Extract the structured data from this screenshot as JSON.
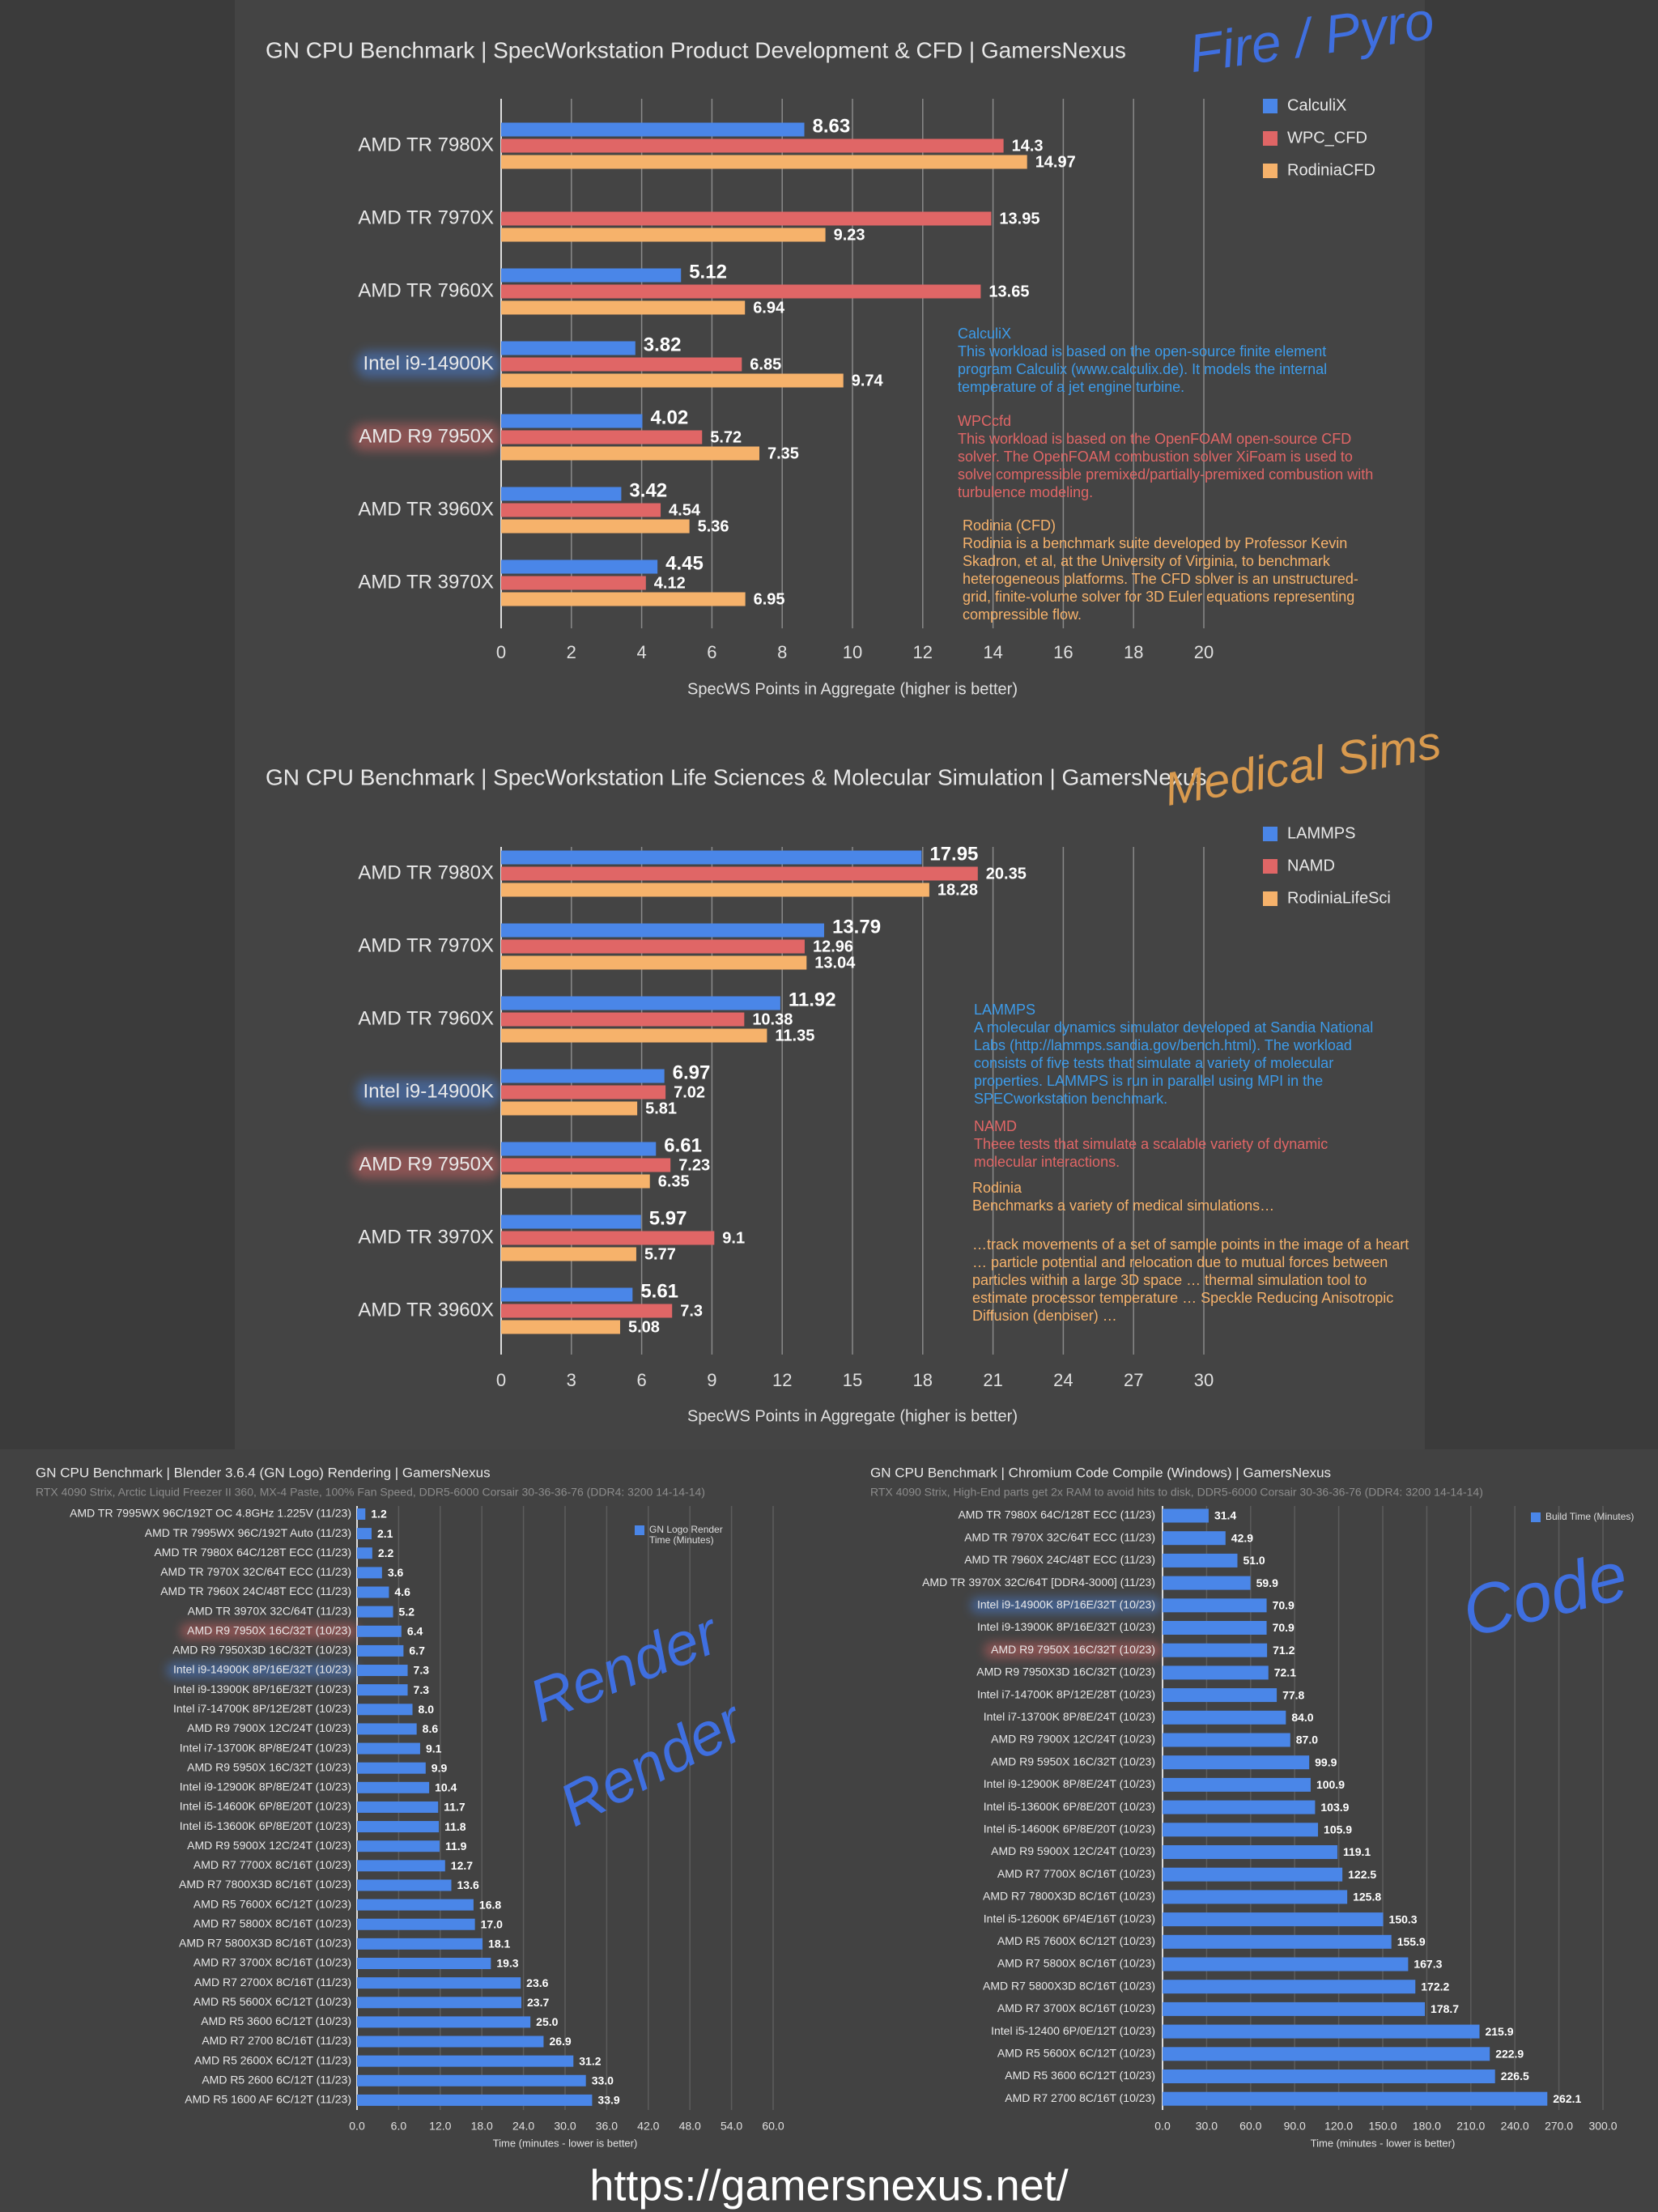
{
  "chart_data": [
    {
      "type": "bar",
      "orientation": "horizontal",
      "title": "GN CPU Benchmark | SpecWorkstation Product Development & CFD | GamersNexus",
      "categories": [
        "AMD TR 7980X",
        "AMD TR 7970X",
        "AMD TR 7960X",
        "Intel i9-14900K",
        "AMD R9 7950X",
        "AMD TR 3960X",
        "AMD TR 3970X"
      ],
      "highlight_colors": [
        null,
        null,
        null,
        "#4a86e8",
        "#e06666",
        null,
        null
      ],
      "series": [
        {
          "name": "CalculiX",
          "color": "#4a86e8",
          "values": [
            8.63,
            null,
            5.12,
            3.82,
            4.02,
            3.42,
            4.45
          ]
        },
        {
          "name": "WPC_CFD",
          "color": "#e06666",
          "values": [
            14.3,
            13.95,
            13.65,
            6.85,
            5.72,
            4.54,
            4.12
          ]
        },
        {
          "name": "RodiniaCFD",
          "color": "#f6b26b",
          "values": [
            14.97,
            9.23,
            6.94,
            9.74,
            7.35,
            5.36,
            6.95
          ]
        }
      ],
      "xlim": [
        0,
        20
      ],
      "xticks": [
        0,
        2,
        4,
        6,
        8,
        10,
        12,
        14,
        16,
        18,
        20
      ],
      "grid": true,
      "x_label": "SpecWS Points in Aggregate (higher is better)",
      "legend_position": "upper right",
      "annotations": [
        {
          "title": "CalculiX",
          "text": "This workload is based on the open-source finite element program Calculix (www.calculix.de). It models the internal temperature of a jet engine turbine.",
          "color": "#3d9be9"
        },
        {
          "title": "WPCcfd",
          "text": "This workload is based on the OpenFOAM open-source CFD solver. The OpenFOAM combustion solver XiFoam is used to solve compressible premixed/partially-premixed combustion with turbulence modeling.",
          "color": "#e06666"
        },
        {
          "title": "Rodinia (CFD)",
          "text": "Rodinia is a benchmark suite developed by Professor Kevin Skadron, et al, at the University of Virginia, to benchmark heterogeneous platforms. The CFD solver is an unstructured-grid, finite-volume solver for 3D Euler equations representing compressible flow.",
          "color": "#f6b26b"
        }
      ]
    },
    {
      "type": "bar",
      "orientation": "horizontal",
      "title": "GN CPU Benchmark | SpecWorkstation Life Sciences & Molecular Simulation | GamersNexus",
      "categories": [
        "AMD TR 7980X",
        "AMD TR 7970X",
        "AMD TR 7960X",
        "Intel i9-14900K",
        "AMD R9 7950X",
        "AMD TR 3970X",
        "AMD TR 3960X"
      ],
      "highlight_colors": [
        null,
        null,
        null,
        "#4a86e8",
        "#e06666",
        null,
        null
      ],
      "series": [
        {
          "name": "LAMMPS",
          "color": "#4a86e8",
          "values": [
            17.95,
            13.79,
            11.92,
            6.97,
            6.61,
            5.97,
            5.61
          ]
        },
        {
          "name": "NAMD",
          "color": "#e06666",
          "values": [
            20.35,
            12.96,
            10.38,
            7.02,
            7.23,
            9.1,
            7.3
          ]
        },
        {
          "name": "RodiniaLifeSci",
          "color": "#f6b26b",
          "values": [
            18.28,
            13.04,
            11.35,
            5.81,
            6.35,
            5.77,
            5.08
          ]
        }
      ],
      "xlim": [
        0,
        30
      ],
      "xticks": [
        0,
        3,
        6,
        9,
        12,
        15,
        18,
        21,
        24,
        27,
        30
      ],
      "grid": true,
      "x_label": "SpecWS Points in Aggregate (higher is better)",
      "legend_position": "upper right",
      "annotations": [
        {
          "title": "LAMMPS",
          "text": "A molecular dynamics simulator developed at Sandia National Labs (http://lammps.sandia.gov/bench.html). The workload consists of five tests that simulate a variety of molecular properties. LAMMPS is run in parallel using MPI in the SPECworkstation benchmark.",
          "color": "#3d9be9"
        },
        {
          "title": "NAMD",
          "text": "Theee tests that simulate a scalable variety of dynamic molecular interactions.",
          "color": "#e06666"
        },
        {
          "title": "Rodinia",
          "text": "Benchmarks a variety of medical simulations…",
          "color": "#f6b26b"
        },
        {
          "text": "…track movements of a set of sample points in the image of a heart … particle potential and relocation due to mutual forces between particles within a large 3D space … thermal simulation tool to estimate processor temperature … Speckle Reducing Anisotropic Diffusion (denoiser) …",
          "color": "#f6b26b"
        }
      ]
    },
    {
      "type": "bar",
      "orientation": "horizontal",
      "title": "GN CPU Benchmark | Blender 3.6.4 (GN Logo) Rendering | GamersNexus",
      "subtitle": "RTX 4090 Strix, Arctic Liquid Freezer II 360, MX-4 Paste, 100% Fan Speed, DDR5-6000 Corsair 30-36-36-76 (DDR4: 3200 14-14-14)",
      "categories": [
        "AMD TR 7995WX 96C/192T OC 4.8GHz 1.225V (11/23)",
        "AMD TR 7995WX 96C/192T Auto (11/23)",
        "AMD TR 7980X 64C/128T ECC (11/23)",
        "AMD TR 7970X 32C/64T ECC (11/23)",
        "AMD TR 7960X 24C/48T ECC (11/23)",
        "AMD TR 3970X 32C/64T (11/23)",
        "AMD R9 7950X 16C/32T (10/23)",
        "AMD R9 7950X3D 16C/32T (10/23)",
        "Intel i9-14900K 8P/16E/32T (10/23)",
        "Intel i9-13900K 8P/16E/32T (10/23)",
        "Intel i7-14700K 8P/12E/28T (10/23)",
        "AMD R9 7900X 12C/24T (10/23)",
        "Intel i7-13700K 8P/8E/24T (10/23)",
        "AMD R9 5950X 16C/32T (10/23)",
        "Intel i9-12900K 8P/8E/24T (10/23)",
        "Intel i5-14600K 6P/8E/20T (10/23)",
        "Intel i5-13600K 6P/8E/20T (10/23)",
        "AMD R9 5900X 12C/24T (10/23)",
        "AMD R7 7700X 8C/16T (10/23)",
        "AMD R7 7800X3D 8C/16T (10/23)",
        "AMD R5 7600X 6C/12T (10/23)",
        "AMD R7 5800X 8C/16T (10/23)",
        "AMD R7 5800X3D 8C/16T (10/23)",
        "AMD R7 3700X 8C/16T (10/23)",
        "AMD R7 2700X 8C/16T (11/23)",
        "AMD R5 5600X 6C/12T (10/23)",
        "AMD R5 3600 6C/12T (10/23)",
        "AMD R7 2700 8C/16T (11/23)",
        "AMD R5 2600X 6C/12T (11/23)",
        "AMD R5 2600 6C/12T (11/23)",
        "AMD R5 1600 AF 6C/12T (11/23)"
      ],
      "highlight_colors": [
        null,
        null,
        null,
        null,
        null,
        null,
        "#e06666",
        null,
        "#4a86e8",
        null,
        null,
        null,
        null,
        null,
        null,
        null,
        null,
        null,
        null,
        null,
        null,
        null,
        null,
        null,
        null,
        null,
        null,
        null,
        null,
        null,
        null
      ],
      "values": [
        1.2,
        2.1,
        2.2,
        3.6,
        4.6,
        5.2,
        6.4,
        6.7,
        7.3,
        7.3,
        8.0,
        8.6,
        9.1,
        9.9,
        10.4,
        11.7,
        11.8,
        11.9,
        12.7,
        13.6,
        16.8,
        17.0,
        18.1,
        19.3,
        23.6,
        23.7,
        25.0,
        26.9,
        31.2,
        33.0,
        33.9
      ],
      "value_labels": [
        "1.2",
        "2.1",
        "2.2",
        "3.6",
        "4.6",
        "5.2",
        "6.4",
        "6.7",
        "7.3",
        "7.3",
        "8.0",
        "8.6",
        "9.1",
        "9.9",
        "10.4",
        "11.7",
        "11.8",
        "11.9",
        "12.7",
        "13.6",
        "16.8",
        "17.0",
        "18.1",
        "19.3",
        "23.6",
        "23.7",
        "25.0",
        "26.9",
        "31.2",
        "33.0",
        "33.9"
      ],
      "color": "#4a86e8",
      "legend_label": "GN Logo Render Time (Minutes)",
      "legend_position": "upper right",
      "xlim": [
        0,
        60
      ],
      "xticks": [
        {
          "value": 0,
          "label": "0.0"
        },
        {
          "value": 6,
          "label": "6.0"
        },
        {
          "value": 12,
          "label": "12.0"
        },
        {
          "value": 18,
          "label": "18.0"
        },
        {
          "value": 24,
          "label": "24.0"
        },
        {
          "value": 30,
          "label": "30.0"
        },
        {
          "value": 36,
          "label": "36.0"
        },
        {
          "value": 42,
          "label": "42.0"
        },
        {
          "value": 48,
          "label": "48.0"
        },
        {
          "value": 54,
          "label": "54.0"
        },
        {
          "value": 60,
          "label": "60.0"
        }
      ],
      "grid": true,
      "x_label": "Time (minutes - lower is better)"
    },
    {
      "type": "bar",
      "orientation": "horizontal",
      "title": "GN CPU Benchmark | Chromium Code Compile (Windows) | GamersNexus",
      "subtitle": "RTX 4090 Strix, High-End parts get 2x RAM to avoid hits to disk, DDR5-6000 Corsair 30-36-36-76 (DDR4: 3200 14-14-14)",
      "categories": [
        "AMD TR 7980X 64C/128T ECC (11/23)",
        "AMD TR 7970X 32C/64T ECC (11/23)",
        "AMD TR 7960X 24C/48T ECC (11/23)",
        "AMD TR 3970X 32C/64T [DDR4-3000] (11/23)",
        "Intel i9-14900K 8P/16E/32T (10/23)",
        "Intel i9-13900K 8P/16E/32T (10/23)",
        "AMD R9 7950X 16C/32T (10/23)",
        "AMD R9 7950X3D 16C/32T (10/23)",
        "Intel i7-14700K 8P/12E/28T (10/23)",
        "Intel i7-13700K 8P/8E/24T (10/23)",
        "AMD R9 7900X 12C/24T (10/23)",
        "AMD R9 5950X 16C/32T (10/23)",
        "Intel i9-12900K 8P/8E/24T (10/23)",
        "Intel i5-13600K 6P/8E/20T (10/23)",
        "Intel i5-14600K 6P/8E/20T (10/23)",
        "AMD R9 5900X 12C/24T (10/23)",
        "AMD R7 7700X 8C/16T (10/23)",
        "AMD R7 7800X3D 8C/16T (10/23)",
        "Intel i5-12600K 6P/4E/16T (10/23)",
        "AMD R5 7600X 6C/12T (10/23)",
        "AMD R7 5800X 8C/16T (10/23)",
        "AMD R7 5800X3D 8C/16T (10/23)",
        "AMD R7 3700X 8C/16T (10/23)",
        "Intel i5-12400 6P/0E/12T (10/23)",
        "AMD R5 5600X 6C/12T (10/23)",
        "AMD R5 3600 6C/12T (10/23)",
        "AMD R7 2700 8C/16T (10/23)"
      ],
      "highlight_colors": [
        null,
        null,
        null,
        null,
        "#4a86e8",
        null,
        "#e06666",
        null,
        null,
        null,
        null,
        null,
        null,
        null,
        null,
        null,
        null,
        null,
        null,
        null,
        null,
        null,
        null,
        null,
        null,
        null,
        null
      ],
      "values": [
        31.4,
        42.9,
        51.0,
        59.9,
        70.9,
        70.9,
        71.2,
        72.1,
        77.8,
        84.0,
        87.0,
        99.9,
        100.9,
        103.9,
        105.9,
        119.1,
        122.5,
        125.8,
        150.3,
        155.9,
        167.3,
        172.2,
        178.7,
        215.9,
        222.9,
        226.5,
        262.1
      ],
      "value_labels": [
        "31.4",
        "42.9",
        "51.0",
        "59.9",
        "70.9",
        "70.9",
        "71.2",
        "72.1",
        "77.8",
        "84.0",
        "87.0",
        "99.9",
        "100.9",
        "103.9",
        "105.9",
        "119.1",
        "122.5",
        "125.8",
        "150.3",
        "155.9",
        "167.3",
        "172.2",
        "178.7",
        "215.9",
        "222.9",
        "226.5",
        "262.1"
      ],
      "color": "#4a86e8",
      "legend_label": "Build Time (Minutes)",
      "legend_position": "upper right",
      "xlim": [
        0,
        300
      ],
      "xticks": [
        {
          "value": 0,
          "label": "0.0"
        },
        {
          "value": 30,
          "label": "30.0"
        },
        {
          "value": 60,
          "label": "60.0"
        },
        {
          "value": 90,
          "label": "90.0"
        },
        {
          "value": 120,
          "label": "120.0"
        },
        {
          "value": 150,
          "label": "150.0"
        },
        {
          "value": 180,
          "label": "180.0"
        },
        {
          "value": 210,
          "label": "210.0"
        },
        {
          "value": 240,
          "label": "240.0"
        },
        {
          "value": 270,
          "label": "270.0"
        },
        {
          "value": 300,
          "label": "300.0"
        }
      ],
      "grid": true,
      "x_label": "Time (minutes - lower is better)"
    }
  ],
  "handwritten_notes": [
    {
      "text": "Fire / Pyro",
      "color": "#3f6fe0"
    },
    {
      "text": "Medical Sims",
      "color": "#d99a4e"
    },
    {
      "text": "Render",
      "color": "#3f6fe0"
    },
    {
      "text": "Render",
      "color": "#3f6fe0"
    },
    {
      "text": "Code",
      "color": "#3f6fe0"
    }
  ],
  "footer_url": "https://gamersnexus.net/"
}
